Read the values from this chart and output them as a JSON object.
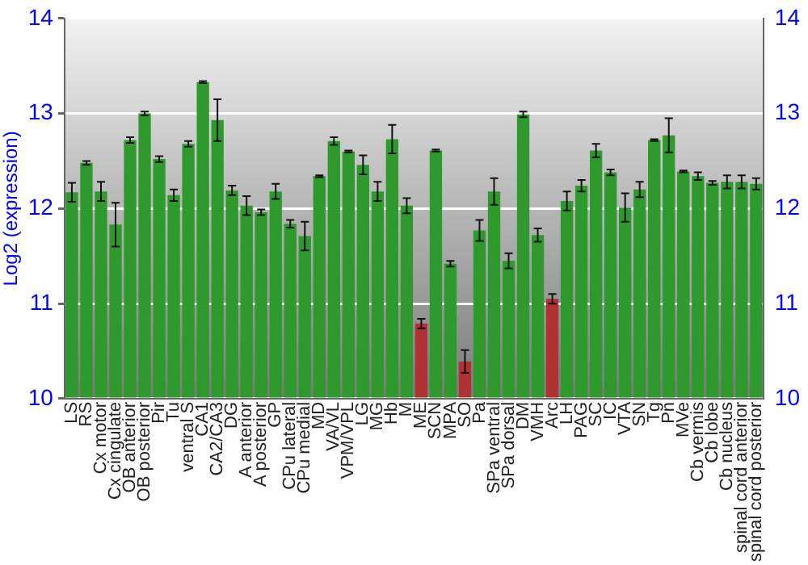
{
  "chart_data": {
    "type": "bar",
    "ylabel": "Log2 (expression)",
    "categories": [
      "LS",
      "RS",
      "Cx motor",
      "Cx cingulate",
      "OB anterior",
      "OB posterior",
      "Pir",
      "Tu",
      "ventral S",
      "CA1",
      "CA2/CA3",
      "DG",
      "A anterior",
      "A posterior",
      "GP",
      "CPu lateral",
      "CPu medial",
      "MD",
      "VA/VL",
      "VPM/VPL",
      "LG",
      "MG",
      "Hb",
      "M",
      "ME",
      "SCN",
      "MPA",
      "SO",
      "Pa",
      "SPa ventral",
      "SPa dorsal",
      "DM",
      "VMH",
      "Arc",
      "LH",
      "PAG",
      "SC",
      "IC",
      "VTA",
      "SN",
      "Tg",
      "Pn",
      "MVe",
      "Cb vermis",
      "Cb lobe",
      "Cb nucleus",
      "spinal cord anterior",
      "spinal cord posterior"
    ],
    "values": [
      12.17,
      12.48,
      12.18,
      11.83,
      12.72,
      13.0,
      12.52,
      12.14,
      12.68,
      13.33,
      12.93,
      12.19,
      12.03,
      11.96,
      12.18,
      11.84,
      11.71,
      12.34,
      12.71,
      12.6,
      12.46,
      12.18,
      12.73,
      12.03,
      10.79,
      12.61,
      11.42,
      10.39,
      11.77,
      12.18,
      11.45,
      12.99,
      11.72,
      11.05,
      12.08,
      12.24,
      12.61,
      12.38,
      12.01,
      12.2,
      12.72,
      12.77,
      12.39,
      12.34,
      12.27,
      12.28,
      12.28,
      12.26
    ],
    "errors": [
      0.1,
      0.02,
      0.1,
      0.23,
      0.03,
      0.02,
      0.03,
      0.06,
      0.03,
      0.01,
      0.22,
      0.05,
      0.1,
      0.03,
      0.08,
      0.04,
      0.15,
      0.01,
      0.04,
      0.01,
      0.1,
      0.1,
      0.15,
      0.08,
      0.05,
      0.01,
      0.03,
      0.12,
      0.11,
      0.14,
      0.08,
      0.03,
      0.07,
      0.05,
      0.1,
      0.06,
      0.07,
      0.03,
      0.15,
      0.08,
      0.01,
      0.18,
      0.01,
      0.04,
      0.02,
      0.07,
      0.07,
      0.06
    ],
    "colors": [
      "#2e9a2e",
      "#2e9a2e",
      "#2e9a2e",
      "#2e9a2e",
      "#2e9a2e",
      "#2e9a2e",
      "#2e9a2e",
      "#2e9a2e",
      "#2e9a2e",
      "#2e9a2e",
      "#2e9a2e",
      "#2e9a2e",
      "#2e9a2e",
      "#2e9a2e",
      "#2e9a2e",
      "#2e9a2e",
      "#2e9a2e",
      "#2e9a2e",
      "#2e9a2e",
      "#2e9a2e",
      "#2e9a2e",
      "#2e9a2e",
      "#2e9a2e",
      "#2e9a2e",
      "#b03232",
      "#2e9a2e",
      "#2e9a2e",
      "#b03232",
      "#2e9a2e",
      "#2e9a2e",
      "#2e9a2e",
      "#2e9a2e",
      "#2e9a2e",
      "#b03232",
      "#2e9a2e",
      "#2e9a2e",
      "#2e9a2e",
      "#2e9a2e",
      "#2e9a2e",
      "#2e9a2e",
      "#2e9a2e",
      "#2e9a2e",
      "#2e9a2e",
      "#2e9a2e",
      "#2e9a2e",
      "#2e9a2e",
      "#2e9a2e",
      "#2e9a2e"
    ],
    "ylim": [
      10,
      14
    ],
    "yticks": [
      10,
      11,
      12,
      13,
      14
    ],
    "y2lim": [
      10,
      14
    ],
    "y2ticks": [
      10,
      11,
      12,
      13,
      14
    ],
    "grid": "y",
    "legend": false
  }
}
